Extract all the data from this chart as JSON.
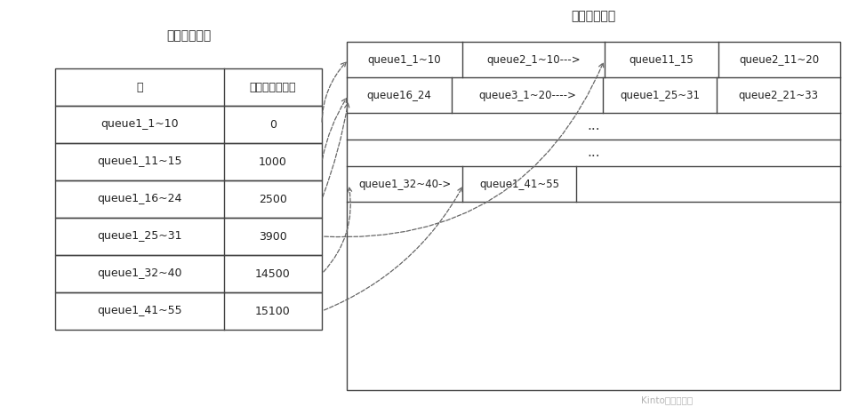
{
  "title_physical": "物理数据文件",
  "title_index": "内存稀疏索引",
  "background_color": "#ffffff",
  "table_header": [
    "块",
    "数据文件偏移量"
  ],
  "table_rows": [
    [
      "queue1_1~10",
      "0"
    ],
    [
      "queue1_11~15",
      "1000"
    ],
    [
      "queue1_16~24",
      "2500"
    ],
    [
      "queue1_25~31",
      "3900"
    ],
    [
      "queue1_32~40",
      "14500"
    ],
    [
      "queue1_41~55",
      "15100"
    ]
  ],
  "row1_cells": [
    "queue1_1~10",
    "queue2_1~10--->",
    "queue11_15",
    "queue2_11~20"
  ],
  "row2_cells": [
    "queue16_24",
    "queue3_1~20---->",
    "queue1_25~31",
    "queue2_21~33"
  ],
  "row5_cells": [
    "queue1_32~40->",
    "queue1_41~55"
  ],
  "watermark": "Kinto的技术分享",
  "dots": "..."
}
